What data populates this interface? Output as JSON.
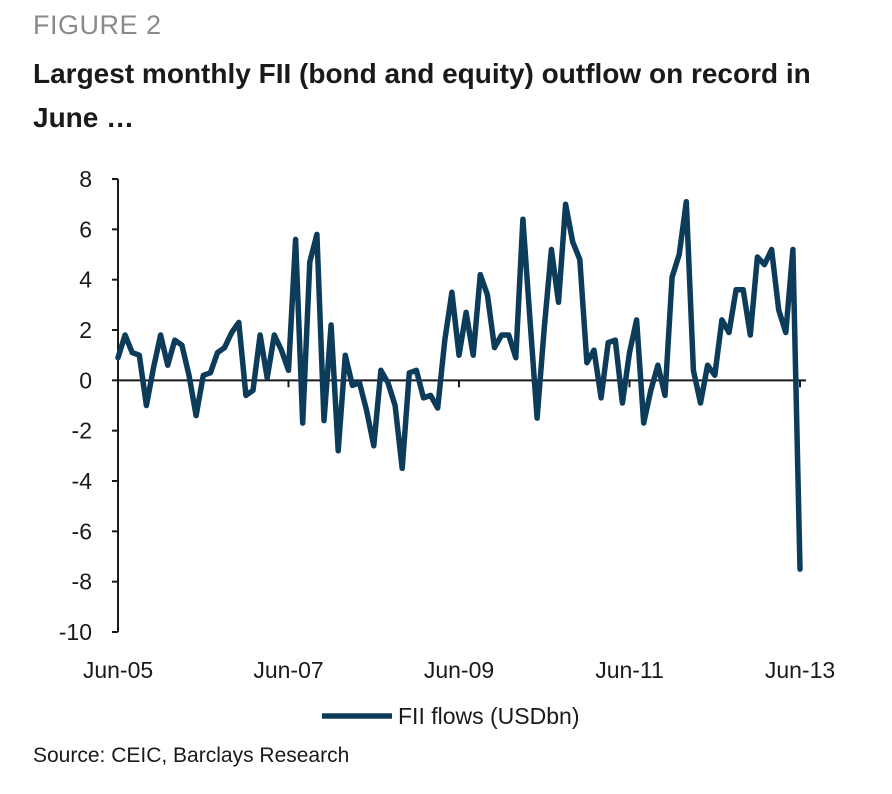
{
  "figure_label": "FIGURE 2",
  "source": "Source: CEIC, Barclays Research",
  "chart_data": {
    "type": "line",
    "title": "Largest monthly FII (bond and equity) outflow on record in June …",
    "xlabel": "",
    "ylabel": "",
    "ylim": [
      -10,
      8
    ],
    "yticks": [
      "8",
      "6",
      "4",
      "2",
      "0",
      "-2",
      "-4",
      "-6",
      "-8",
      "-10"
    ],
    "ytick_values": [
      8,
      6,
      4,
      2,
      0,
      -2,
      -4,
      -6,
      -8,
      -10
    ],
    "xticks": [
      "Jun-05",
      "Jun-07",
      "Jun-09",
      "Jun-11",
      "Jun-13"
    ],
    "x_start": "Jun-05",
    "x_end": "Jun-13",
    "grid": false,
    "legend": "bottom",
    "colors": {
      "line": "#0d3c5b",
      "axis": "#1a1a1a"
    },
    "series": [
      {
        "name": "FII flows (USDbn)",
        "values": [
          0.9,
          1.8,
          1.1,
          1.0,
          -1.0,
          0.5,
          1.8,
          0.6,
          1.6,
          1.4,
          0.2,
          -1.4,
          0.2,
          0.3,
          1.1,
          1.3,
          1.9,
          2.3,
          -0.6,
          -0.4,
          1.8,
          0.1,
          1.8,
          1.2,
          0.4,
          5.6,
          -1.7,
          4.7,
          5.8,
          -1.6,
          2.2,
          -2.8,
          1.0,
          -0.2,
          -0.1,
          -1.2,
          -2.6,
          0.4,
          -0.1,
          -1.0,
          -3.5,
          0.3,
          0.4,
          -0.7,
          -0.6,
          -1.1,
          1.6,
          3.5,
          1.0,
          2.7,
          1.0,
          4.2,
          3.4,
          1.3,
          1.8,
          1.8,
          0.9,
          6.4,
          2.4,
          -1.5,
          2.1,
          5.2,
          3.1,
          7.0,
          5.5,
          4.8,
          0.7,
          1.2,
          -0.7,
          1.5,
          1.6,
          -0.9,
          1.1,
          2.4,
          -1.7,
          -0.4,
          0.6,
          -0.6,
          4.1,
          5.0,
          7.1,
          0.4,
          -0.9,
          0.6,
          0.2,
          2.4,
          1.9,
          3.6,
          3.6,
          1.8,
          4.9,
          4.6,
          5.2,
          2.8,
          1.9,
          5.2,
          -7.5
        ]
      }
    ]
  }
}
